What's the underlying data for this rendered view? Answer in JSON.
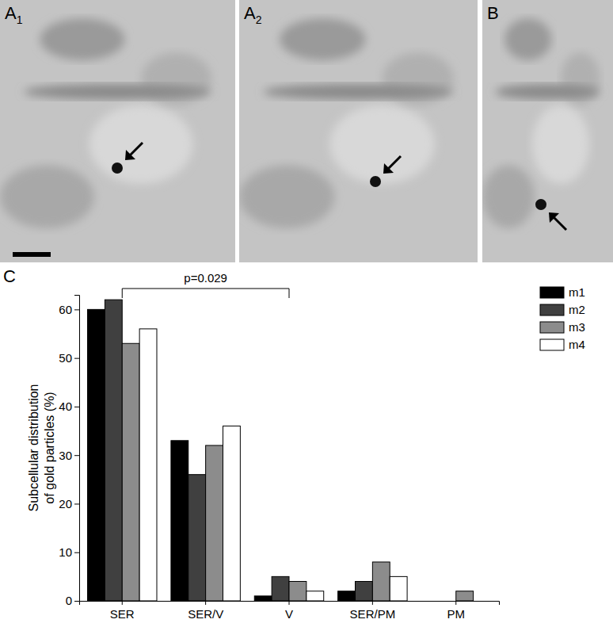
{
  "chart_data": {
    "type": "bar",
    "panel_label": "C",
    "ylabel": [
      "Subcellular distribution",
      "of gold particles (%)"
    ],
    "categories": [
      "SER",
      "SER/V",
      "V",
      "SER/PM",
      "PM"
    ],
    "series": [
      {
        "name": "m1",
        "color": "#000000",
        "values": [
          60,
          33,
          1,
          2,
          0
        ]
      },
      {
        "name": "m2",
        "color": "#404040",
        "values": [
          62,
          26,
          5,
          4,
          0
        ]
      },
      {
        "name": "m3",
        "color": "#8c8c8c",
        "values": [
          53,
          32,
          4,
          8,
          2
        ]
      },
      {
        "name": "m4",
        "color": "#ffffff",
        "values": [
          56,
          36,
          2,
          5,
          0
        ]
      }
    ],
    "ylim": [
      0,
      63
    ],
    "yticks": [
      0,
      10,
      20,
      30,
      40,
      50,
      60
    ],
    "legend": "upper right",
    "annotations": [
      {
        "text": "p=0.029",
        "from": "SER",
        "to": "V"
      }
    ]
  },
  "image_panels": [
    {
      "label": "A",
      "subscript": "1"
    },
    {
      "label": "A",
      "subscript": "2"
    },
    {
      "label": "B"
    }
  ]
}
